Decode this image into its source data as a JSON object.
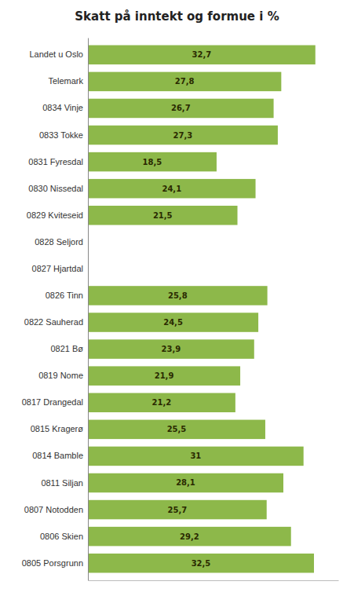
{
  "chart_data": {
    "type": "bar",
    "orientation": "horizontal",
    "title": "Skatt på inntekt og formue i %",
    "categories": [
      "0805 Porsgrunn",
      "0806 Skien",
      "0807 Notodden",
      "0811 Siljan",
      "0814 Bamble",
      "0815 Kragerø",
      "0817 Drangedal",
      "0819 Nome",
      "0821 Bø",
      "0822 Sauherad",
      "0826 Tinn",
      "0827 Hjartdal",
      "0828 Seljord",
      "0829 Kviteseid",
      "0830 Nissedal",
      "0831 Fyresdal",
      "0833 Tokke",
      "0834 Vinje",
      "Telemark",
      "Landet u Oslo"
    ],
    "values": [
      32.5,
      29.2,
      25.7,
      28.1,
      31.0,
      25.5,
      21.2,
      21.9,
      23.9,
      24.5,
      25.8,
      0,
      0,
      21.5,
      24.1,
      18.5,
      27.3,
      26.7,
      27.8,
      32.7
    ],
    "value_labels": [
      "32,5",
      "29,2",
      "25,7",
      "28,1",
      "31",
      "25,5",
      "21,2",
      "21,9",
      "23,9",
      "24,5",
      "25,8",
      null,
      null,
      "21,5",
      "24,1",
      "18,5",
      "27,3",
      "26,7",
      "27,8",
      "32,7"
    ],
    "data_labels": true,
    "color": "#8DB84A",
    "xlim": [
      0,
      36
    ],
    "grid": false,
    "tick_labels": "y"
  }
}
